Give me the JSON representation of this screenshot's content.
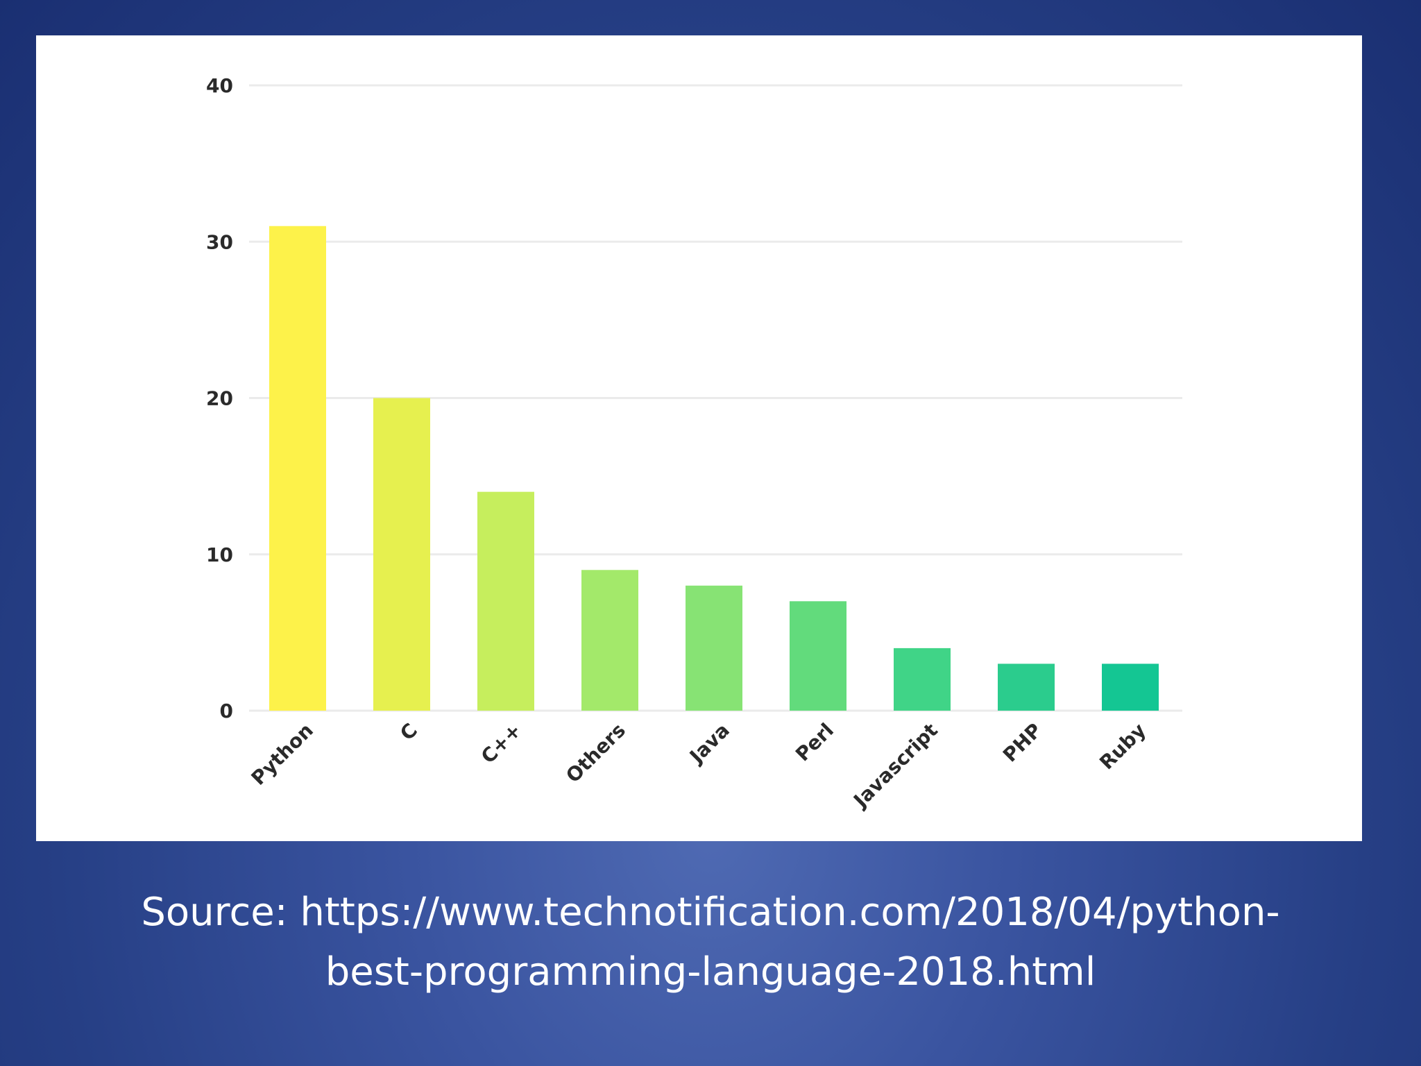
{
  "chart_data": {
    "type": "bar",
    "categories": [
      "Python",
      "C",
      "C++",
      "Others",
      "Java",
      "Perl",
      "Javascript",
      "PHP",
      "Ruby"
    ],
    "values": [
      31,
      20,
      14,
      9,
      8,
      7,
      4,
      3,
      3
    ],
    "colors": [
      "#fdf24a",
      "#e6f04f",
      "#c6ee5d",
      "#a3e96a",
      "#87e374",
      "#62db7c",
      "#40d487",
      "#2bcc8d",
      "#14c693"
    ],
    "yticks": [
      0,
      10,
      20,
      30,
      40
    ],
    "ylim": [
      0,
      40
    ],
    "grid": true,
    "title": "",
    "xlabel": "",
    "ylabel": ""
  },
  "caption": {
    "line1": "Source: https://www.technotification.com/2018/04/python-",
    "line2": "best-programming-language-2018.html"
  }
}
